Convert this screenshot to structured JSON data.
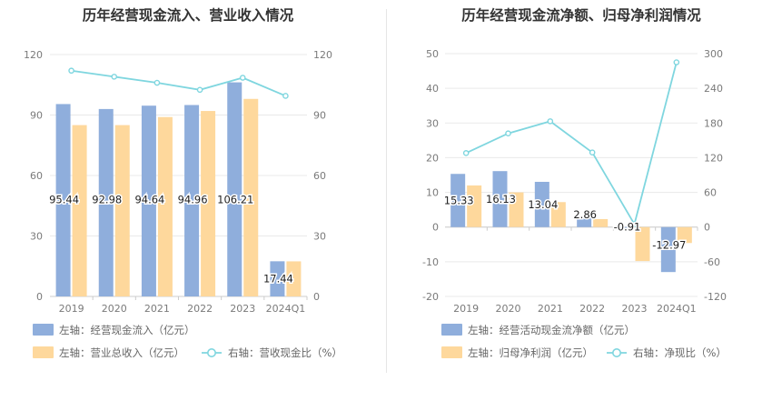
{
  "chart_data": [
    {
      "type": "bar",
      "title": "历年经营现金流入、营业收入情况",
      "categories": [
        "2019",
        "2020",
        "2021",
        "2022",
        "2023",
        "2024Q1"
      ],
      "y_left_ticks": [
        "0",
        "30",
        "60",
        "90",
        "120"
      ],
      "y_right_ticks": [
        "0",
        "30",
        "60",
        "90",
        "120"
      ],
      "ylim_left": [
        0,
        120
      ],
      "ylim_right": [
        0,
        120
      ],
      "grid": true,
      "series": [
        {
          "name": "左轴：经营现金流入（亿元）",
          "type": "bar",
          "axis": "left",
          "color": "#8faedc",
          "values": [
            95.44,
            92.98,
            94.64,
            94.96,
            106.21,
            17.44
          ],
          "labels": [
            "95.44",
            "92.98",
            "94.64",
            "94.96",
            "106.21",
            "17.44"
          ]
        },
        {
          "name": "左轴：营业总收入（亿元）",
          "type": "bar",
          "axis": "left",
          "color": "#fed89c",
          "values": [
            85,
            85,
            89,
            92,
            98,
            17.4
          ]
        },
        {
          "name": "右轴：营收现金比（%）",
          "type": "line",
          "axis": "right",
          "color": "#7fd6df",
          "values": [
            112,
            109,
            106,
            102.5,
            108.5,
            99.5
          ]
        }
      ]
    },
    {
      "type": "bar",
      "title": "历年经营现金流净额、归母净利润情况",
      "categories": [
        "2019",
        "2020",
        "2021",
        "2022",
        "2023",
        "2024Q1"
      ],
      "y_left_ticks": [
        "-20",
        "-10",
        "0",
        "10",
        "20",
        "30",
        "40",
        "50"
      ],
      "y_right_ticks": [
        "-120",
        "-60",
        "0",
        "60",
        "120",
        "180",
        "240",
        "300"
      ],
      "ylim_left": [
        -20,
        50
      ],
      "ylim_right": [
        -120,
        300
      ],
      "grid": true,
      "series": [
        {
          "name": "左轴：经营活动现金流净额（亿元）",
          "type": "bar",
          "axis": "left",
          "color": "#8faedc",
          "values": [
            15.33,
            16.13,
            13.04,
            2.86,
            -0.91,
            -12.97
          ],
          "labels": [
            "15.33",
            "16.13",
            "13.04",
            "2.86",
            "-0.91",
            "-12.97"
          ]
        },
        {
          "name": "左轴：归母净利润（亿元）",
          "type": "bar",
          "axis": "left",
          "color": "#fed89c",
          "values": [
            12,
            10,
            7.2,
            2.3,
            -9.8,
            -4.6
          ]
        },
        {
          "name": "右轴：净现比（%）",
          "type": "line",
          "axis": "right",
          "color": "#7fd6df",
          "values": [
            128,
            162,
            183,
            129,
            5,
            285
          ]
        }
      ]
    }
  ]
}
